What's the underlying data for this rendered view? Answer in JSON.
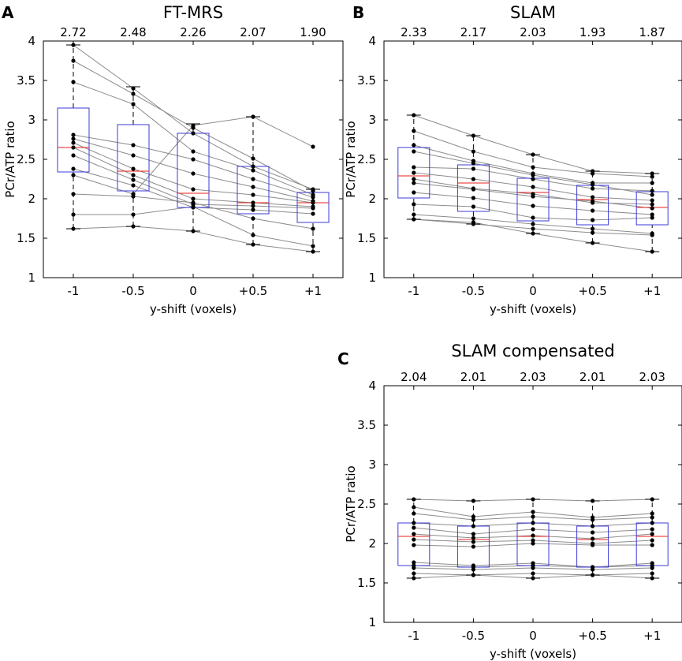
{
  "chart_data": [
    {
      "panel": "A",
      "type": "box",
      "title": "FT-MRS",
      "xlabel": "y-shift (voxels)",
      "ylabel": "PCr/ATP ratio",
      "categories": [
        "-1",
        "-0.5",
        "0",
        "+0.5",
        "+1"
      ],
      "yticks": [
        "1",
        "1.5",
        "2",
        "2.5",
        "3",
        "3.5",
        "4"
      ],
      "ylim": [
        1,
        4
      ],
      "means": [
        "2.72",
        "2.48",
        "2.26",
        "2.07",
        "1.90"
      ],
      "boxes": [
        {
          "whisker_low": 1.62,
          "q1": 2.34,
          "median": 2.65,
          "q3": 3.15,
          "whisker_high": 3.95
        },
        {
          "whisker_low": 1.65,
          "q1": 2.1,
          "median": 2.35,
          "q3": 2.94,
          "whisker_high": 3.42
        },
        {
          "whisker_low": 1.59,
          "q1": 1.89,
          "median": 2.07,
          "q3": 2.83,
          "whisker_high": 2.95
        },
        {
          "whisker_low": 1.42,
          "q1": 1.81,
          "median": 1.95,
          "q3": 2.41,
          "whisker_high": 3.04
        },
        {
          "whisker_low": 1.33,
          "q1": 1.7,
          "median": 1.95,
          "q3": 2.08,
          "whisker_high": 2.12
        }
      ],
      "subjects": [
        [
          3.95,
          3.4,
          2.83,
          2.41,
          2.12
        ],
        [
          3.75,
          3.33,
          2.9,
          2.51,
          2.1
        ],
        [
          3.48,
          3.2,
          2.6,
          2.36,
          2.05
        ],
        [
          2.81,
          2.68,
          2.5,
          2.25,
          2.02
        ],
        [
          2.76,
          2.55,
          2.32,
          2.15,
          1.97
        ],
        [
          2.71,
          2.38,
          2.12,
          2.05,
          1.95
        ],
        [
          2.65,
          2.3,
          2.0,
          1.95,
          1.9
        ],
        [
          2.55,
          2.24,
          1.93,
          1.91,
          1.88
        ],
        [
          2.38,
          2.17,
          1.89,
          1.86,
          1.81
        ],
        [
          2.3,
          2.06,
          2.93,
          3.04,
          2.66
        ],
        [
          2.06,
          2.03,
          1.95,
          1.75,
          1.62
        ],
        [
          1.8,
          1.8,
          1.9,
          1.54,
          1.4
        ],
        [
          1.62,
          1.65,
          1.59,
          1.42,
          1.33
        ]
      ]
    },
    {
      "panel": "B",
      "type": "box",
      "title": "SLAM",
      "xlabel": "y-shift (voxels)",
      "ylabel": "PCr/ATP ratio",
      "categories": [
        "-1",
        "-0.5",
        "0",
        "+0.5",
        "+1"
      ],
      "yticks": [
        "1",
        "1.5",
        "2",
        "2.5",
        "3",
        "3.5",
        "4"
      ],
      "ylim": [
        1,
        4
      ],
      "means": [
        "2.33",
        "2.17",
        "2.03",
        "1.93",
        "1.87"
      ],
      "boxes": [
        {
          "whisker_low": 1.74,
          "q1": 2.01,
          "median": 2.29,
          "q3": 2.65,
          "whisker_high": 3.06
        },
        {
          "whisker_low": 1.68,
          "q1": 1.84,
          "median": 2.2,
          "q3": 2.43,
          "whisker_high": 2.8
        },
        {
          "whisker_low": 1.56,
          "q1": 1.72,
          "median": 2.08,
          "q3": 2.26,
          "whisker_high": 2.56
        },
        {
          "whisker_low": 1.44,
          "q1": 1.67,
          "median": 1.99,
          "q3": 2.17,
          "whisker_high": 2.35
        },
        {
          "whisker_low": 1.33,
          "q1": 1.67,
          "median": 1.89,
          "q3": 2.09,
          "whisker_high": 2.32
        }
      ],
      "subjects": [
        [
          3.06,
          2.8,
          2.56,
          2.35,
          2.32
        ],
        [
          2.86,
          2.6,
          2.4,
          2.32,
          2.28
        ],
        [
          2.68,
          2.48,
          2.32,
          2.2,
          2.2
        ],
        [
          2.4,
          2.38,
          2.25,
          2.13,
          2.1
        ],
        [
          2.33,
          2.25,
          2.15,
          2.02,
          1.98
        ],
        [
          2.25,
          2.13,
          2.06,
          1.95,
          1.93
        ],
        [
          2.2,
          2.12,
          2.03,
          1.97,
          1.88
        ],
        [
          2.08,
          2.01,
          1.91,
          1.85,
          1.8
        ],
        [
          1.93,
          1.9,
          1.76,
          1.73,
          1.76
        ],
        [
          1.8,
          1.75,
          1.68,
          1.62,
          1.56
        ],
        [
          1.74,
          1.68,
          1.62,
          1.57,
          1.54
        ],
        [
          2.6,
          2.45,
          2.3,
          2.18,
          2.05
        ],
        [
          1.74,
          1.7,
          1.56,
          1.44,
          1.33
        ]
      ]
    },
    {
      "panel": "C",
      "type": "box",
      "title": "SLAM compensated",
      "xlabel": "y-shift (voxels)",
      "ylabel": "PCr/ATP ratio",
      "categories": [
        "-1",
        "-0.5",
        "0",
        "+0.5",
        "+1"
      ],
      "yticks": [
        "1",
        "1.5",
        "2",
        "2.5",
        "3",
        "3.5",
        "4"
      ],
      "ylim": [
        1,
        4
      ],
      "means": [
        "2.04",
        "2.01",
        "2.03",
        "2.01",
        "2.03"
      ],
      "boxes": [
        {
          "whisker_low": 1.56,
          "q1": 1.72,
          "median": 2.09,
          "q3": 2.26,
          "whisker_high": 2.56
        },
        {
          "whisker_low": 1.6,
          "q1": 1.7,
          "median": 2.05,
          "q3": 2.22,
          "whisker_high": 2.54
        },
        {
          "whisker_low": 1.56,
          "q1": 1.72,
          "median": 2.09,
          "q3": 2.26,
          "whisker_high": 2.56
        },
        {
          "whisker_low": 1.6,
          "q1": 1.7,
          "median": 2.05,
          "q3": 2.22,
          "whisker_high": 2.54
        },
        {
          "whisker_low": 1.56,
          "q1": 1.72,
          "median": 2.09,
          "q3": 2.26,
          "whisker_high": 2.56
        }
      ],
      "subjects": [
        [
          2.56,
          2.54,
          2.56,
          2.54,
          2.56
        ],
        [
          2.46,
          2.34,
          2.4,
          2.33,
          2.38
        ],
        [
          2.38,
          2.3,
          2.34,
          2.3,
          2.33
        ],
        [
          2.26,
          2.22,
          2.26,
          2.22,
          2.26
        ],
        [
          2.2,
          2.12,
          2.18,
          2.14,
          2.18
        ],
        [
          2.12,
          2.07,
          2.1,
          2.06,
          2.12
        ],
        [
          2.05,
          2.02,
          2.04,
          2.0,
          2.04
        ],
        [
          1.98,
          1.96,
          2.0,
          1.98,
          1.98
        ],
        [
          1.76,
          1.72,
          1.75,
          1.7,
          1.75
        ],
        [
          1.69,
          1.67,
          1.69,
          1.67,
          1.69
        ],
        [
          1.62,
          1.6,
          1.62,
          1.6,
          1.62
        ],
        [
          1.56,
          1.6,
          1.56,
          1.6,
          1.56
        ],
        [
          1.72,
          1.7,
          1.72,
          1.7,
          1.72
        ]
      ]
    }
  ]
}
